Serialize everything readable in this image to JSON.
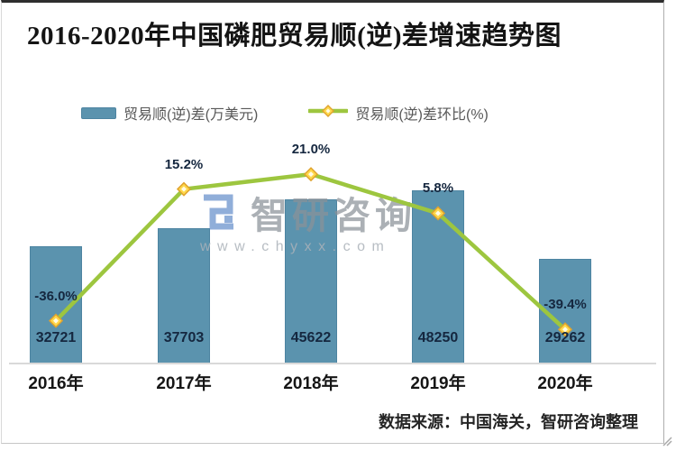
{
  "frame": {
    "source_note": "数据来源：中国海关，智研咨询整理"
  },
  "legend": [
    {
      "label": "贸易顺(逆)差(万美元)",
      "type": "bar",
      "color": "#5b93ae"
    },
    {
      "label": "贸易顺(逆)差环比(%)",
      "type": "line",
      "color": "#9dc63f",
      "marker_color": "#ffd84a"
    }
  ],
  "watermark": {
    "name": "智研咨询",
    "url": "www.chyxx.com",
    "logo_color": "#6f9fd8",
    "logo_icon": "square-spiral-logo"
  },
  "chart_data": {
    "type": "bar",
    "combo": "bar+line",
    "title": "2016-2020年中国磷肥贸易顺(逆)差增速趋势图",
    "categories": [
      "2016年",
      "2017年",
      "2018年",
      "2019年",
      "2020年"
    ],
    "series": [
      {
        "name": "贸易顺(逆)差(万美元)",
        "type": "bar",
        "values": [
          32721,
          37703,
          45622,
          48250,
          29262
        ],
        "labels": [
          "32721",
          "37703",
          "45622",
          "48250",
          "29262"
        ],
        "color": "#5b93ae"
      },
      {
        "name": "贸易顺(逆)差环比(%)",
        "type": "line",
        "values": [
          -36.0,
          15.2,
          21.0,
          5.8,
          -39.4
        ],
        "labels": [
          "-36.0%",
          "15.2%",
          "21.0%",
          "5.8%",
          "-39.4%"
        ],
        "color": "#9dc63f",
        "marker": "diamond"
      }
    ],
    "xlabel": "",
    "ylabel": "",
    "legend_position": "top",
    "grid": false,
    "bar_axis_baseline": 0,
    "source": "数据来源：中国海关，智研咨询整理"
  }
}
